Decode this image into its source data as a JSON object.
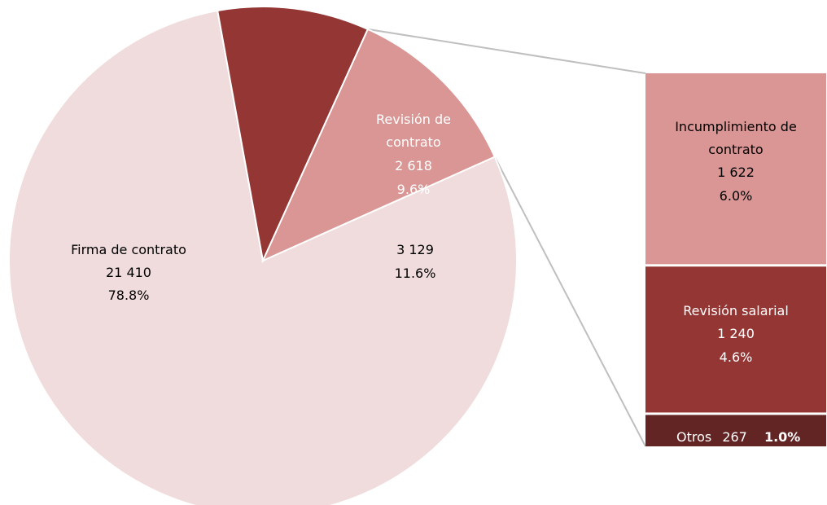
{
  "chart_data": {
    "type": "bar-of-pie",
    "pie": {
      "slices": [
        {
          "key": "firma",
          "name": "Firma de contrato",
          "value": 21410,
          "value_label": "21 410",
          "percent_label": "78.8%",
          "color": "#f1dcdd",
          "text_color": "#000000"
        },
        {
          "key": "revision",
          "name": "Revisión de contrato",
          "name_lines": [
            "Revisión de",
            "contrato"
          ],
          "value": 2618,
          "value_label": "2 618",
          "percent_label": "9.6%",
          "color": "#943634",
          "text_color": "#ffffff"
        },
        {
          "key": "otros_group",
          "name": "",
          "value": 3129,
          "value_label": "3 129",
          "percent_label": "11.6%",
          "color": "#d99694",
          "text_color": "#000000"
        }
      ]
    },
    "breakdown_bar": {
      "segments": [
        {
          "key": "incumplimiento",
          "name": "Incumplimiento de contrato",
          "name_lines": [
            "Incumplimiento de",
            "contrato"
          ],
          "value": 1622,
          "value_label": "1 622",
          "percent_label": "6.0%",
          "color": "#d99694",
          "text_color": "#000000"
        },
        {
          "key": "salarial",
          "name": "Revisión salarial",
          "name_lines": [
            "Revisión salarial"
          ],
          "value": 1240,
          "value_label": "1 240",
          "percent_label": "4.6%",
          "color": "#943634",
          "text_color": "#ffffff"
        },
        {
          "key": "otros",
          "name": "Otros",
          "value": 267,
          "value_label": "267",
          "percent_label": "1.0%",
          "color": "#632523",
          "text_color": "#ffffff"
        }
      ]
    },
    "connector_color": "#bfbfbf"
  }
}
